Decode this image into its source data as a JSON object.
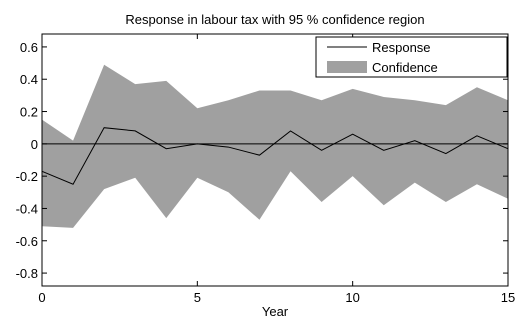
{
  "chart_data": {
    "type": "line",
    "title": "Response in labour tax with 95 % confidence region",
    "xlabel": "Year",
    "ylabel": "",
    "xlim": [
      0,
      15
    ],
    "ylim": [
      -0.88,
      0.68
    ],
    "x_ticks": [
      0,
      5,
      10,
      15
    ],
    "y_ticks": [
      -0.8,
      -0.6,
      -0.4,
      -0.2,
      0,
      0.2,
      0.4,
      0.6
    ],
    "x_tick_labels": [
      "0",
      "5",
      "10",
      "15"
    ],
    "y_tick_labels": [
      "-0.8",
      "-0.6",
      "-0.4",
      "-0.2",
      "0",
      "0.2",
      "0.4",
      "0.6"
    ],
    "grid": false,
    "zero_line": true,
    "legend_position": "top-right",
    "x": [
      0,
      1,
      2,
      3,
      4,
      5,
      6,
      7,
      8,
      9,
      10,
      11,
      12,
      13,
      14,
      15
    ],
    "series": [
      {
        "name": "Response",
        "kind": "line",
        "color": "#000000",
        "values": [
          -0.17,
          -0.25,
          0.1,
          0.08,
          -0.03,
          0.0,
          -0.02,
          -0.07,
          0.08,
          -0.04,
          0.06,
          -0.04,
          0.02,
          -0.06,
          0.05,
          -0.03
        ]
      },
      {
        "name": "Confidence",
        "kind": "band",
        "color": "#a0a0a0",
        "upper": [
          0.15,
          0.02,
          0.49,
          0.37,
          0.39,
          0.22,
          0.27,
          0.33,
          0.33,
          0.27,
          0.34,
          0.29,
          0.27,
          0.24,
          0.35,
          0.27
        ],
        "lower": [
          -0.51,
          -0.52,
          -0.28,
          -0.21,
          -0.46,
          -0.21,
          -0.3,
          -0.47,
          -0.17,
          -0.36,
          -0.2,
          -0.38,
          -0.24,
          -0.36,
          -0.25,
          -0.34
        ]
      }
    ]
  }
}
